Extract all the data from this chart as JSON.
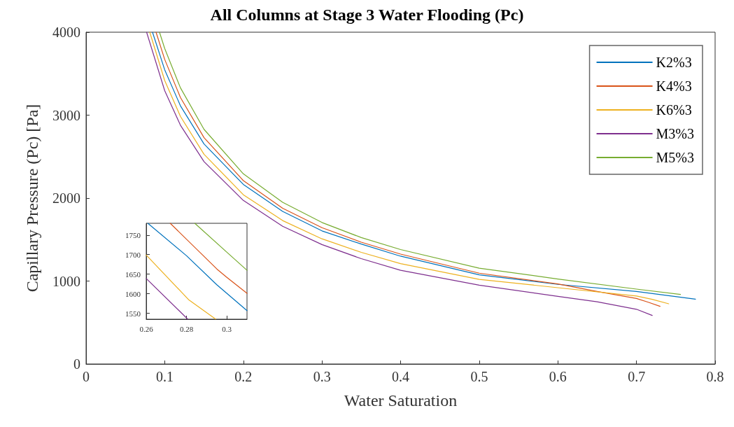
{
  "chart_data": [
    {
      "type": "line",
      "title": "All Columns at Stage 3 Water Flooding (Pc)",
      "xlabel": "Water Saturation",
      "ylabel": "Capillary Pressure (Pc) [Pa]",
      "xlim": [
        0,
        0.8
      ],
      "xticks": [
        0,
        0.1,
        0.2,
        0.3,
        0.4,
        0.5,
        0.6,
        0.7,
        0.8
      ],
      "ylim": [
        0,
        4000
      ],
      "yticks": [
        0,
        1000,
        2000,
        3000,
        4000
      ],
      "grid": false,
      "legend": "top right",
      "marker": "none",
      "line_style": "solid",
      "series": [
        {
          "name": "K2%3",
          "color": "#0072bd",
          "x": [
            0.0845,
            0.1,
            0.12,
            0.15,
            0.2,
            0.25,
            0.3,
            0.35,
            0.4,
            0.5,
            0.6,
            0.7,
            0.775
          ],
          "values": [
            4000,
            3547,
            3113,
            2653,
            2165,
            1840,
            1605,
            1446,
            1300,
            1075,
            960,
            875,
            782
          ]
        },
        {
          "name": "K4%3",
          "color": "#d95319",
          "x": [
            0.089,
            0.1,
            0.12,
            0.15,
            0.2,
            0.25,
            0.3,
            0.35,
            0.4,
            0.5,
            0.6,
            0.65,
            0.7,
            0.715,
            0.73
          ],
          "values": [
            4000,
            3672,
            3213,
            2729,
            2211,
            1878,
            1643,
            1468,
            1325,
            1095,
            965,
            875,
            790,
            745,
            695
          ]
        },
        {
          "name": "K6%3",
          "color": "#edb120",
          "x": [
            0.081,
            0.1,
            0.12,
            0.15,
            0.2,
            0.25,
            0.3,
            0.35,
            0.4,
            0.5,
            0.6,
            0.7,
            0.72,
            0.741
          ],
          "values": [
            4000,
            3418,
            2985,
            2528,
            2041,
            1729,
            1509,
            1346,
            1210,
            1020,
            920,
            820,
            780,
            726
          ]
        },
        {
          "name": "M3%3",
          "color": "#7e2f8e",
          "x": [
            0.077,
            0.1,
            0.12,
            0.15,
            0.2,
            0.25,
            0.3,
            0.35,
            0.4,
            0.5,
            0.6,
            0.65,
            0.7,
            0.72
          ],
          "values": [
            4000,
            3295,
            2879,
            2440,
            1972,
            1660,
            1440,
            1270,
            1130,
            950,
            815,
            750,
            660,
            585
          ]
        },
        {
          "name": "M5%3",
          "color": "#77ac30",
          "x": [
            0.0934,
            0.1,
            0.12,
            0.15,
            0.2,
            0.25,
            0.3,
            0.35,
            0.4,
            0.5,
            0.6,
            0.7,
            0.756
          ],
          "values": [
            4000,
            3804,
            3330,
            2829,
            2293,
            1949,
            1706,
            1524,
            1380,
            1155,
            1025,
            903,
            838
          ]
        }
      ]
    },
    {
      "type": "line",
      "xlim": [
        0.26,
        0.31
      ],
      "xticks": [
        0.26,
        0.28,
        0.3
      ],
      "ylim": [
        1535,
        1780
      ],
      "yticks": [
        1550,
        1600,
        1650,
        1700,
        1750
      ],
      "grid": false,
      "legend": false,
      "marker": "none",
      "line_style": "solid",
      "series": [
        {
          "color": "#0072bd",
          "x": [
            0.2608,
            0.28,
            0.295,
            0.31
          ],
          "values": [
            1780,
            1697,
            1623,
            1557
          ]
        },
        {
          "color": "#d95319",
          "x": [
            0.2719,
            0.2951,
            0.3,
            0.31
          ],
          "values": [
            1780,
            1663,
            1642,
            1601
          ]
        },
        {
          "color": "#edb120",
          "x": [
            0.26,
            0.2812,
            0.2945
          ],
          "values": [
            1699,
            1584,
            1535
          ]
        },
        {
          "color": "#7e2f8e",
          "x": [
            0.26,
            0.2806
          ],
          "values": [
            1639,
            1535
          ]
        },
        {
          "color": "#77ac30",
          "x": [
            0.2841,
            0.3009,
            0.31
          ],
          "values": [
            1780,
            1702,
            1660
          ]
        }
      ]
    }
  ]
}
